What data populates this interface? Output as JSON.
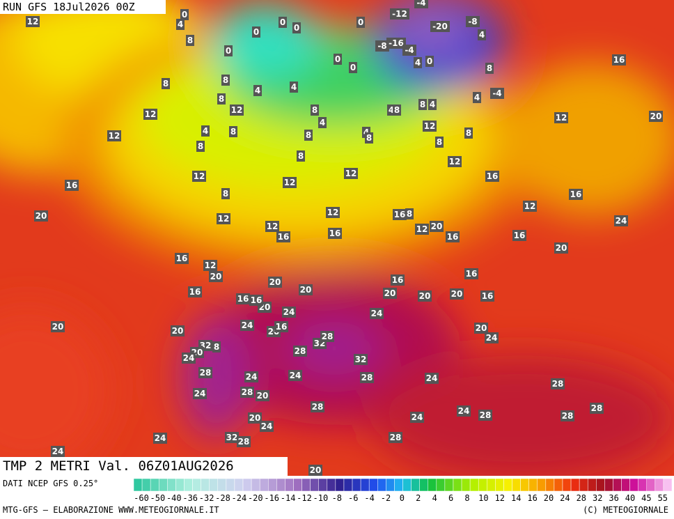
{
  "header": {
    "run": "RUN GFS 18Jul2026 00Z",
    "field": "TMP 2 METRI Val. 06Z01AUG2026"
  },
  "footer": {
    "source": "DATI NCEP GFS 0.25°",
    "credit": "MTG-GFS — ELABORAZIONE WWW.METEOGIORNALE.IT",
    "copyright": "(C) METEOGIORNALE"
  },
  "color_scale": [
    -60,
    -50,
    -40,
    -36,
    -32,
    -28,
    -24,
    -20,
    -16,
    -14,
    -12,
    -10,
    -8,
    -6,
    -4,
    -2,
    0,
    2,
    4,
    6,
    8,
    10,
    12,
    14,
    16,
    20,
    24,
    28,
    32,
    36,
    40,
    45,
    55
  ],
  "map_labels": [
    12,
    0,
    4,
    0,
    0,
    0,
    8,
    0,
    0,
    -4,
    -12,
    -20,
    -8,
    4,
    -8,
    -16,
    -4,
    4,
    0,
    8,
    -4,
    4,
    16,
    0,
    0,
    8,
    8,
    4,
    4,
    8,
    12,
    12,
    8,
    4,
    4,
    8,
    8,
    4,
    12,
    20,
    12,
    4,
    8,
    8,
    12,
    8,
    4,
    8,
    8,
    8,
    8,
    12,
    12,
    12,
    12,
    16,
    16,
    8,
    16,
    12,
    20,
    12,
    12,
    16,
    8,
    12,
    24,
    16,
    16,
    12,
    20,
    16,
    16,
    20,
    16,
    12,
    20,
    16,
    16,
    20,
    20,
    20,
    20,
    20,
    16,
    16,
    16,
    20,
    16,
    24,
    24,
    20,
    24,
    20,
    16,
    20,
    24,
    20,
    32,
    8,
    20,
    24,
    28,
    32,
    28,
    32,
    28,
    24,
    24,
    28,
    24,
    24,
    28,
    20,
    28,
    28,
    24,
    28,
    24,
    28,
    20,
    24,
    28,
    24,
    32,
    28,
    28,
    24,
    20
  ]
}
